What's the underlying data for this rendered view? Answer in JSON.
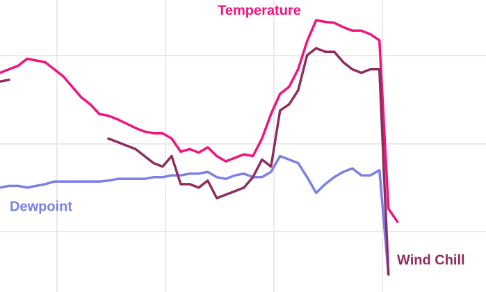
{
  "chart_data": {
    "type": "line",
    "x": [
      0,
      0.5,
      1,
      1.5,
      2,
      2.5,
      3,
      3.5,
      4,
      4.5,
      5,
      5.5,
      6,
      6.5,
      7,
      7.5,
      8,
      8.5,
      9,
      9.5,
      10,
      10.5,
      11,
      11.5,
      12,
      12.5,
      13,
      13.5,
      14,
      14.5,
      15,
      15.5,
      16,
      16.5,
      17,
      17.5,
      18,
      18.5,
      19,
      19.5,
      20,
      20.5,
      21,
      21.5,
      22,
      22.5,
      23,
      23.5,
      24,
      24.5,
      25,
      25.5,
      26,
      26.5
    ],
    "xlim": [
      0,
      26.9
    ],
    "ylim": [
      3,
      36.3
    ],
    "grid": true,
    "series": [
      {
        "name": "Temperature",
        "color": "#f0147c",
        "values": [
          28.0,
          28.4,
          28.8,
          29.6,
          29.4,
          29.2,
          28.4,
          27.6,
          26.4,
          25.2,
          24.4,
          23.3,
          23.1,
          22.7,
          22.2,
          21.7,
          21.3,
          21.1,
          21.1,
          20.5,
          19.0,
          19.3,
          18.9,
          19.5,
          18.5,
          17.9,
          18.3,
          18.7,
          18.5,
          20.5,
          23.3,
          25.6,
          26.4,
          28.4,
          31.6,
          34.0,
          33.8,
          33.7,
          33.2,
          32.8,
          32.8,
          32.4,
          31.7,
          12.5,
          11.0,
          null,
          null,
          null,
          null,
          null,
          null,
          null,
          null,
          null
        ]
      },
      {
        "name": "Dewpoint",
        "color": "#7b7fe6",
        "values": [
          14.9,
          15.1,
          15.1,
          14.9,
          15.1,
          15.3,
          15.6,
          15.6,
          15.6,
          15.6,
          15.6,
          15.6,
          15.7,
          15.9,
          15.9,
          15.9,
          15.9,
          16.1,
          16.1,
          16.3,
          16.3,
          16.5,
          16.5,
          16.7,
          16.1,
          15.9,
          16.3,
          16.5,
          16.1,
          16.1,
          16.7,
          18.5,
          18.1,
          17.7,
          16.1,
          14.3,
          15.3,
          16.1,
          16.7,
          17.1,
          16.3,
          16.3,
          16.9,
          5.0,
          null,
          null,
          null,
          null,
          null,
          null,
          null,
          null,
          null,
          null
        ]
      },
      {
        "name": "Wind Chill",
        "color": "#8e2c5e",
        "values": [
          27.0,
          27.2,
          null,
          null,
          null,
          null,
          null,
          null,
          null,
          null,
          null,
          null,
          20.5,
          20.1,
          19.7,
          19.3,
          18.5,
          17.7,
          17.3,
          18.5,
          15.3,
          15.3,
          14.9,
          15.7,
          13.7,
          14.1,
          14.5,
          14.9,
          16.1,
          18.1,
          17.3,
          23.7,
          24.4,
          26.0,
          30.0,
          30.8,
          30.4,
          30.4,
          29.2,
          28.4,
          28.0,
          28.4,
          28.4,
          5.0,
          null,
          null,
          null,
          null,
          null,
          null,
          null,
          null,
          null,
          null
        ]
      }
    ]
  }
}
